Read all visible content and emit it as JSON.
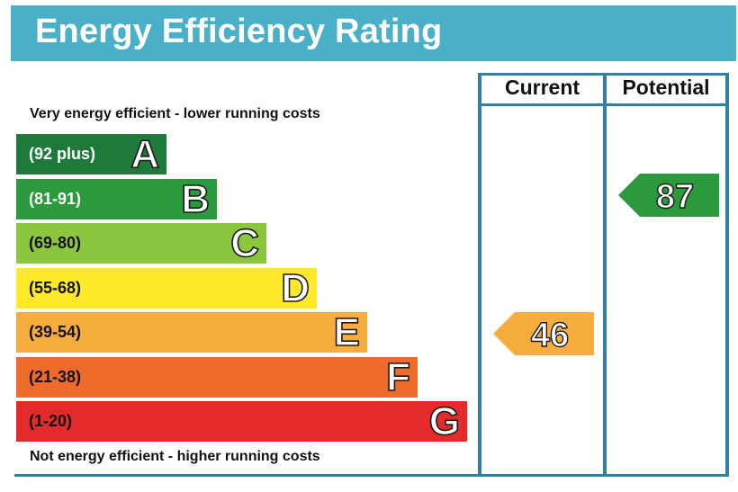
{
  "title": "Energy Efficiency Rating",
  "columns": {
    "current": "Current",
    "potential": "Potential"
  },
  "notes": {
    "top": "Very energy efficient - lower running costs",
    "bottom": "Not energy efficient - higher running costs"
  },
  "chart_data": {
    "type": "bar",
    "categories": [
      "A",
      "B",
      "C",
      "D",
      "E",
      "F",
      "G"
    ],
    "ranges": [
      "(92 plus)",
      "(81-91)",
      "(69-80)",
      "(55-68)",
      "(39-54)",
      "(21-38)",
      "(1-20)"
    ],
    "colors": [
      "#1e7a3a",
      "#2a9a3c",
      "#8cc63f",
      "#ffe92a",
      "#f7ac3e",
      "#ee6b2c",
      "#e42a2b"
    ],
    "range_text_colors": [
      "#ffffff",
      "#ffffff",
      "#111111",
      "#111111",
      "#111111",
      "#111111",
      "#111111"
    ],
    "current": {
      "value": 46,
      "band": "E",
      "color": "#f7ac3e"
    },
    "potential": {
      "value": 87,
      "band": "B",
      "color": "#2a9a3c"
    }
  }
}
